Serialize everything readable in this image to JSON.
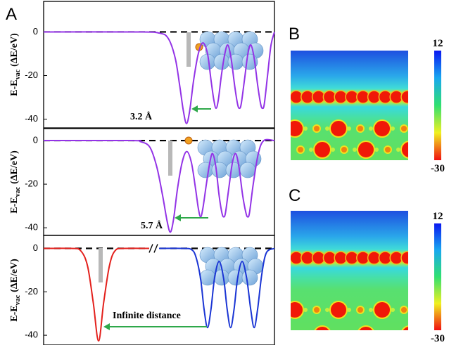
{
  "chart_data": [
    {
      "type": "line",
      "label": "A",
      "ylabel": {
        "main": "E-E",
        "sub": "vac",
        "rest": "(ΔE/eV)"
      },
      "annotation": "3.2 Å",
      "ylim": [
        -44,
        14
      ],
      "yticks": [
        0,
        -20,
        -40
      ],
      "xlim": [
        0,
        100
      ],
      "hline": 0,
      "x": [
        0,
        40,
        50,
        54,
        57,
        59,
        60.5,
        61.9,
        63.3,
        65,
        67,
        69,
        71,
        72.5,
        73.7,
        74.7,
        75.7,
        77,
        78.5,
        79.8,
        81.2,
        82.8,
        84,
        84.8,
        85.6,
        87,
        88.5,
        89.8,
        91.2,
        92.8,
        94,
        94.8,
        95.6,
        97,
        98.5,
        100
      ],
      "series": [
        {
          "color": "#9333e6",
          "values": [
            0,
            0,
            -0.5,
            -3,
            -12,
            -25,
            -36,
            -42,
            -36,
            -22,
            -10,
            -5,
            -10,
            -22,
            -31,
            -35,
            -31,
            -20,
            -10,
            -6,
            -12,
            -25,
            -33,
            -35,
            -33,
            -22,
            -10,
            -6,
            -12,
            -25,
            -33,
            -35,
            -33,
            -20,
            -6,
            0
          ]
        }
      ]
    },
    {
      "type": "line",
      "ylabel": {
        "main": "E-E",
        "sub": "vac",
        "rest": "(ΔE/eV)"
      },
      "annotation": "5.7 Å",
      "ylim": [
        -43.5,
        5.5
      ],
      "yticks": [
        0,
        -20,
        -40
      ],
      "xlim": [
        0,
        100
      ],
      "hline": 0,
      "x": [
        0,
        38,
        42,
        46,
        49,
        51.5,
        53.5,
        54.9,
        56.3,
        58,
        60,
        62,
        64,
        65.8,
        67,
        68,
        69,
        70.5,
        72,
        73.2,
        74.6,
        76,
        77.2,
        78,
        78.8,
        80.2,
        81.8,
        83.2,
        84.6,
        86.2,
        87.6,
        88.4,
        89.2,
        90.8,
        93,
        95.4,
        100
      ],
      "series": [
        {
          "color": "#9333e6",
          "values": [
            0,
            0,
            -0.5,
            -3,
            -12,
            -25,
            -37,
            -42,
            -36,
            -22,
            -10,
            -5,
            -10,
            -22,
            -31,
            -35,
            -31,
            -20,
            -10,
            -6,
            -12,
            -25,
            -33,
            -35,
            -33,
            -22,
            -10,
            -6,
            -12,
            -25,
            -33,
            -35,
            -33,
            -20,
            -6,
            0,
            0
          ]
        }
      ]
    },
    {
      "type": "line",
      "ylabel": {
        "main": "E-E",
        "sub": "vac",
        "rest": "(ΔE/eV)"
      },
      "annotation": "Infinite distance",
      "ylim": [
        -44.5,
        6
      ],
      "yticks": [
        0,
        -20,
        -40
      ],
      "xlim": [
        0,
        100
      ],
      "hline": 0,
      "x": [
        0,
        12,
        16,
        19,
        21.5,
        23.8,
        26,
        28.5,
        31,
        35,
        47,
        50,
        60,
        64,
        66,
        68,
        69.5,
        71,
        72.5,
        74,
        76,
        78,
        79.5,
        81,
        82.5,
        84,
        86,
        88,
        89.7,
        91.2,
        92.7,
        94.5,
        96.5,
        100
      ],
      "series": [
        {
          "color": "#e3201c",
          "values": [
            0,
            0,
            -1,
            -8,
            -25,
            -42.6,
            -25,
            -8,
            -1,
            0,
            0,
            null,
            null,
            null,
            null,
            null,
            null,
            null,
            null,
            null,
            null,
            null,
            null,
            null,
            null,
            null,
            null,
            null,
            null,
            null,
            null,
            null,
            null,
            null
          ]
        },
        {
          "color": "#1a35d4",
          "values": [
            null,
            null,
            null,
            null,
            null,
            null,
            null,
            null,
            null,
            null,
            null,
            0,
            0,
            -0.5,
            -4,
            -14,
            -28,
            -36.5,
            -28,
            -14,
            -6,
            -14,
            -28,
            -36.5,
            -28,
            -14,
            -6,
            -14,
            -28,
            -36.5,
            -28,
            -12,
            -2,
            0
          ]
        }
      ]
    },
    {
      "type": "heatmap",
      "label": "B",
      "colorbar": {
        "lim": [
          -30,
          12
        ],
        "ticks": [
          12,
          -30
        ]
      }
    },
    {
      "type": "heatmap",
      "label": "C",
      "colorbar": {
        "lim": [
          -30,
          12
        ],
        "ticks": [
          12,
          -30
        ]
      }
    }
  ]
}
